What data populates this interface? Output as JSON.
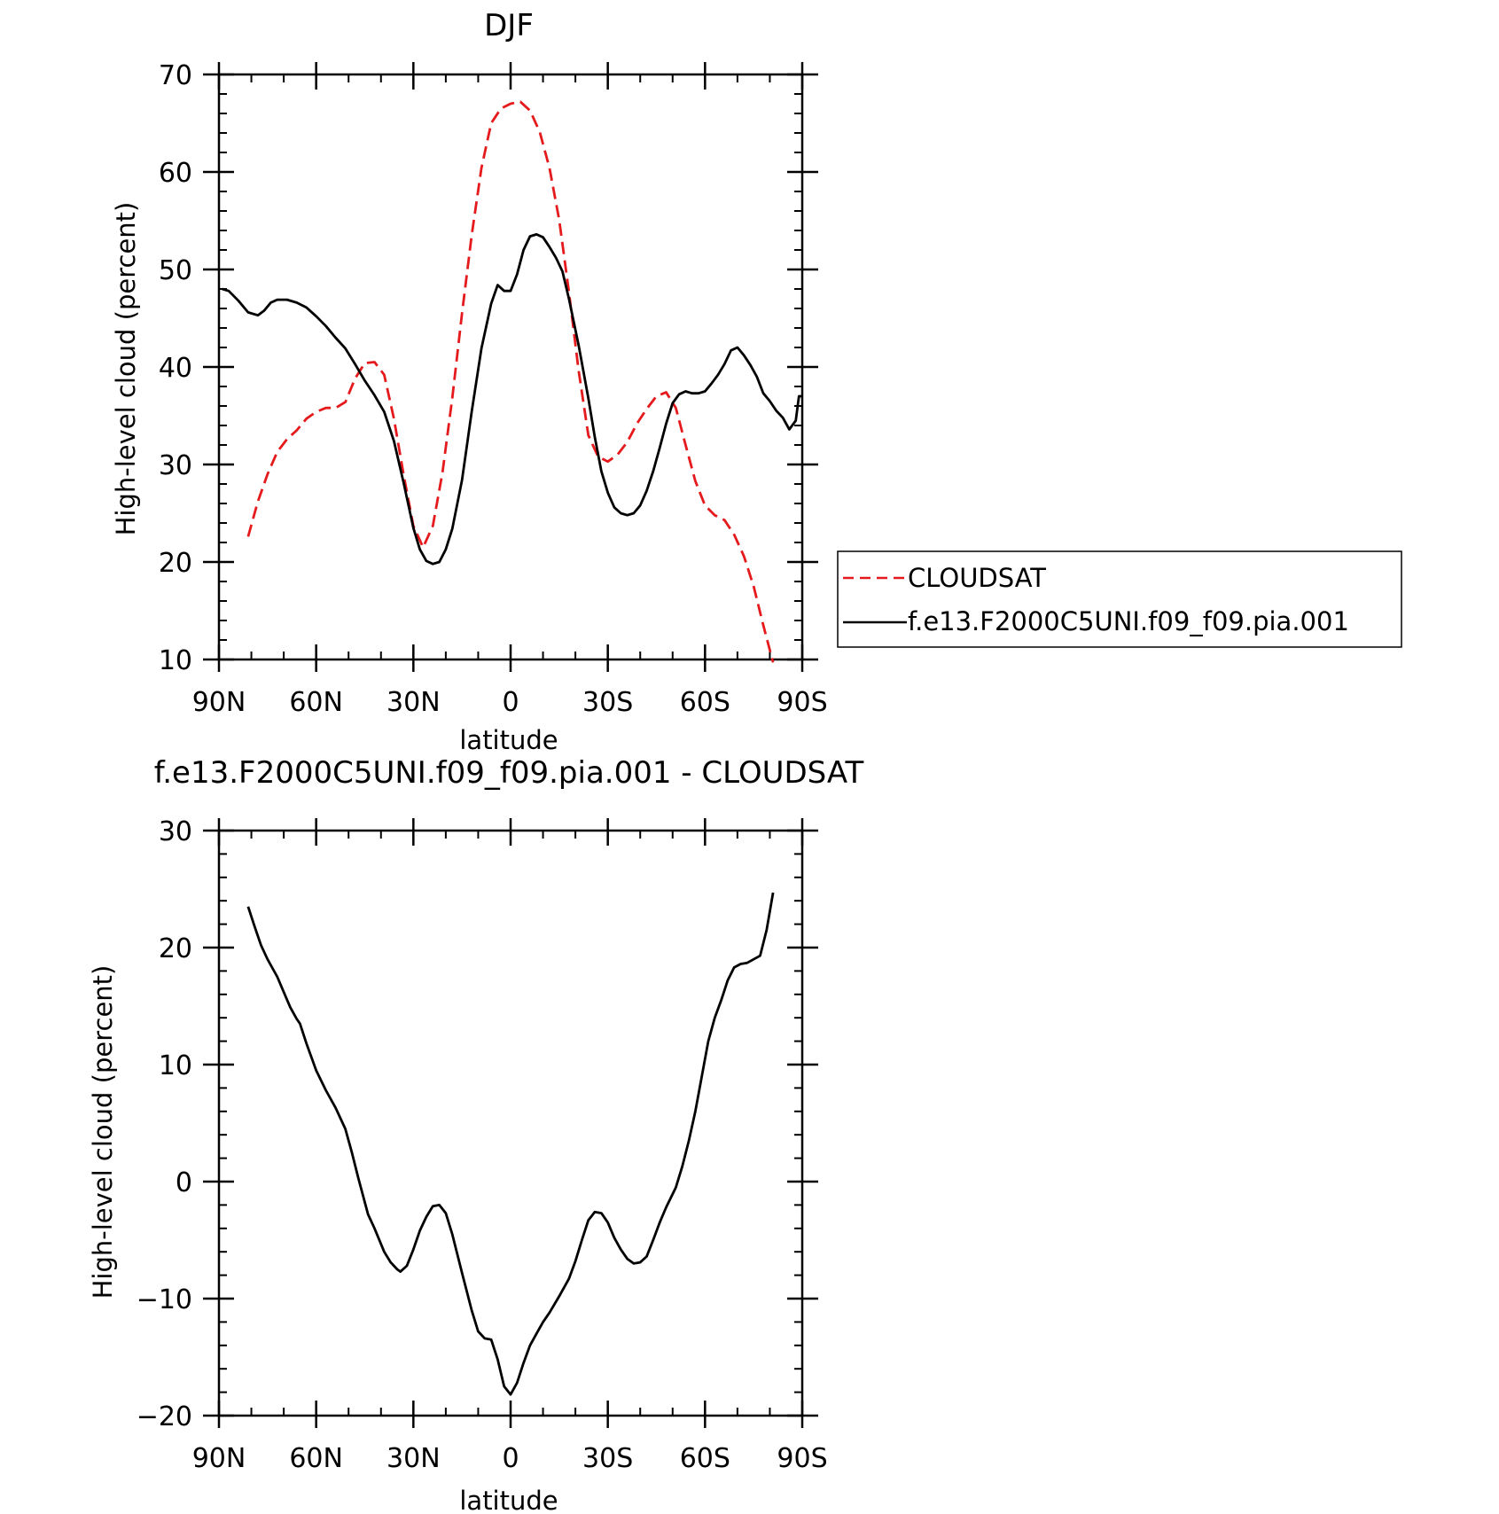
{
  "chart_data": [
    {
      "type": "line",
      "title": "DJF",
      "xlabel": "latitude",
      "ylabel": "High-level cloud (percent)",
      "xlim": [
        90,
        -90
      ],
      "ylim": [
        10,
        70
      ],
      "x_ticks": [
        {
          "value": 90,
          "label": "90N"
        },
        {
          "value": 60,
          "label": "60N"
        },
        {
          "value": 30,
          "label": "30N"
        },
        {
          "value": 0,
          "label": "0"
        },
        {
          "value": -30,
          "label": "30S"
        },
        {
          "value": -60,
          "label": "60S"
        },
        {
          "value": -90,
          "label": "90S"
        }
      ],
      "y_ticks": [
        10,
        20,
        30,
        40,
        50,
        60,
        70
      ],
      "legend": {
        "placement": "right"
      },
      "series": [
        {
          "name": "CLOUDSAT",
          "color": "#e41a1c",
          "dash": "dashed",
          "points": [
            [
              81,
              22.6
            ],
            [
              78,
              26.2
            ],
            [
              75,
              29.0
            ],
            [
              72,
              31.3
            ],
            [
              69,
              32.6
            ],
            [
              66,
              33.5
            ],
            [
              63,
              34.7
            ],
            [
              60,
              35.4
            ],
            [
              57,
              35.8
            ],
            [
              54,
              35.8
            ],
            [
              51,
              36.4
            ],
            [
              48,
              38.8
            ],
            [
              45,
              40.4
            ],
            [
              42,
              40.5
            ],
            [
              39,
              39.2
            ],
            [
              36,
              34.7
            ],
            [
              33,
              28.9
            ],
            [
              30,
              23.7
            ],
            [
              27,
              21.5
            ],
            [
              24,
              23.7
            ],
            [
              21,
              29.2
            ],
            [
              18,
              36.8
            ],
            [
              15,
              45.5
            ],
            [
              12,
              53.5
            ],
            [
              9,
              60.4
            ],
            [
              6,
              65.0
            ],
            [
              3,
              66.5
            ],
            [
              0,
              67.0
            ],
            [
              -3,
              67.2
            ],
            [
              -6,
              66.3
            ],
            [
              -9,
              64.1
            ],
            [
              -12,
              60.4
            ],
            [
              -15,
              55.1
            ],
            [
              -18,
              47.7
            ],
            [
              -21,
              39.6
            ],
            [
              -24,
              33.0
            ],
            [
              -27,
              30.8
            ],
            [
              -30,
              30.3
            ],
            [
              -33,
              31.0
            ],
            [
              -36,
              32.3
            ],
            [
              -39,
              34.2
            ],
            [
              -42,
              35.7
            ],
            [
              -45,
              37.0
            ],
            [
              -48,
              37.4
            ],
            [
              -51,
              35.8
            ],
            [
              -54,
              32.0
            ],
            [
              -57,
              28.3
            ],
            [
              -60,
              25.8
            ],
            [
              -63,
              24.8
            ],
            [
              -66,
              24.3
            ],
            [
              -69,
              22.8
            ],
            [
              -72,
              20.6
            ],
            [
              -75,
              17.5
            ],
            [
              -78,
              13.5
            ],
            [
              -81,
              9.7
            ]
          ]
        },
        {
          "name": "f.e13.F2000C5UNI.f09_f09.pia.001",
          "color": "#000000",
          "dash": "solid",
          "points": [
            [
              89,
              48.0
            ],
            [
              87,
              47.8
            ],
            [
              84,
              46.8
            ],
            [
              81,
              45.6
            ],
            [
              78,
              45.3
            ],
            [
              76,
              45.8
            ],
            [
              74,
              46.6
            ],
            [
              72,
              46.9
            ],
            [
              69,
              46.9
            ],
            [
              66,
              46.6
            ],
            [
              63,
              46.1
            ],
            [
              60,
              45.2
            ],
            [
              57,
              44.2
            ],
            [
              54,
              43.0
            ],
            [
              51,
              41.9
            ],
            [
              48,
              40.3
            ],
            [
              45,
              38.6
            ],
            [
              42,
              37.1
            ],
            [
              39,
              35.4
            ],
            [
              36,
              32.4
            ],
            [
              33,
              28.1
            ],
            [
              30,
              23.5
            ],
            [
              28,
              21.3
            ],
            [
              26,
              20.1
            ],
            [
              24,
              19.8
            ],
            [
              22,
              20.0
            ],
            [
              20,
              21.3
            ],
            [
              18,
              23.4
            ],
            [
              15,
              28.4
            ],
            [
              12,
              35.4
            ],
            [
              9,
              41.9
            ],
            [
              6,
              46.5
            ],
            [
              4,
              48.4
            ],
            [
              2,
              47.8
            ],
            [
              0,
              47.8
            ],
            [
              -2,
              49.5
            ],
            [
              -4,
              52.0
            ],
            [
              -6,
              53.4
            ],
            [
              -8,
              53.6
            ],
            [
              -10,
              53.3
            ],
            [
              -12,
              52.3
            ],
            [
              -14,
              51.2
            ],
            [
              -16,
              49.8
            ],
            [
              -18,
              47.0
            ],
            [
              -21,
              42.2
            ],
            [
              -24,
              36.8
            ],
            [
              -26,
              32.8
            ],
            [
              -28,
              29.3
            ],
            [
              -30,
              27.1
            ],
            [
              -32,
              25.6
            ],
            [
              -34,
              25.0
            ],
            [
              -36,
              24.8
            ],
            [
              -38,
              25.0
            ],
            [
              -40,
              25.8
            ],
            [
              -42,
              27.3
            ],
            [
              -44,
              29.3
            ],
            [
              -46,
              31.7
            ],
            [
              -48,
              34.2
            ],
            [
              -50,
              36.3
            ],
            [
              -52,
              37.2
            ],
            [
              -54,
              37.5
            ],
            [
              -56,
              37.3
            ],
            [
              -58,
              37.3
            ],
            [
              -60,
              37.5
            ],
            [
              -62,
              38.3
            ],
            [
              -64,
              39.2
            ],
            [
              -66,
              40.3
            ],
            [
              -68,
              41.7
            ],
            [
              -70,
              42.0
            ],
            [
              -72,
              41.2
            ],
            [
              -74,
              40.2
            ],
            [
              -76,
              39.0
            ],
            [
              -78,
              37.3
            ],
            [
              -80,
              36.5
            ],
            [
              -82,
              35.5
            ],
            [
              -84,
              34.8
            ],
            [
              -86,
              33.6
            ],
            [
              -88,
              34.5
            ],
            [
              -89,
              37.0
            ],
            [
              -90,
              37.0
            ]
          ]
        }
      ]
    },
    {
      "type": "line",
      "title": "f.e13.F2000C5UNI.f09_f09.pia.001 - CLOUDSAT",
      "xlabel": "latitude",
      "ylabel": "High-level cloud (percent)",
      "xlim": [
        90,
        -90
      ],
      "ylim": [
        -20,
        30
      ],
      "x_ticks": [
        {
          "value": 90,
          "label": "90N"
        },
        {
          "value": 60,
          "label": "60N"
        },
        {
          "value": 30,
          "label": "30N"
        },
        {
          "value": 0,
          "label": "0"
        },
        {
          "value": -30,
          "label": "30S"
        },
        {
          "value": -60,
          "label": "60S"
        },
        {
          "value": -90,
          "label": "90S"
        }
      ],
      "y_ticks": [
        -20,
        -10,
        0,
        10,
        20,
        30
      ],
      "series": [
        {
          "color": "#000000",
          "dash": "solid",
          "points": [
            [
              81,
              23.5
            ],
            [
              79,
              21.8
            ],
            [
              77,
              20.2
            ],
            [
              75,
              19.0
            ],
            [
              72,
              17.5
            ],
            [
              70,
              16.2
            ],
            [
              68,
              14.9
            ],
            [
              66,
              13.9
            ],
            [
              65,
              13.5
            ],
            [
              63,
              11.8
            ],
            [
              60,
              9.5
            ],
            [
              57,
              7.8
            ],
            [
              54,
              6.3
            ],
            [
              51,
              4.5
            ],
            [
              49,
              2.5
            ],
            [
              47,
              0.3
            ],
            [
              44,
              -2.8
            ],
            [
              42,
              -4.0
            ],
            [
              39,
              -6.0
            ],
            [
              37,
              -6.9
            ],
            [
              35,
              -7.5
            ],
            [
              34,
              -7.7
            ],
            [
              32,
              -7.2
            ],
            [
              30,
              -5.8
            ],
            [
              28,
              -4.2
            ],
            [
              26,
              -3.0
            ],
            [
              24,
              -2.1
            ],
            [
              22,
              -2.0
            ],
            [
              20,
              -2.7
            ],
            [
              18,
              -4.5
            ],
            [
              15,
              -7.8
            ],
            [
              12,
              -11.0
            ],
            [
              10,
              -12.8
            ],
            [
              8,
              -13.4
            ],
            [
              6,
              -13.5
            ],
            [
              4,
              -15.2
            ],
            [
              2,
              -17.5
            ],
            [
              0,
              -18.2
            ],
            [
              -2,
              -17.2
            ],
            [
              -4,
              -15.5
            ],
            [
              -6,
              -14.0
            ],
            [
              -8,
              -13.0
            ],
            [
              -10,
              -12.0
            ],
            [
              -12,
              -11.2
            ],
            [
              -15,
              -9.8
            ],
            [
              -18,
              -8.3
            ],
            [
              -20,
              -6.8
            ],
            [
              -22,
              -5.0
            ],
            [
              -24,
              -3.3
            ],
            [
              -26,
              -2.6
            ],
            [
              -28,
              -2.7
            ],
            [
              -30,
              -3.5
            ],
            [
              -32,
              -4.8
            ],
            [
              -34,
              -5.8
            ],
            [
              -36,
              -6.6
            ],
            [
              -38,
              -7.0
            ],
            [
              -40,
              -6.9
            ],
            [
              -42,
              -6.4
            ],
            [
              -44,
              -5.0
            ],
            [
              -46,
              -3.5
            ],
            [
              -48,
              -2.2
            ],
            [
              -51,
              -0.5
            ],
            [
              -53,
              1.3
            ],
            [
              -55,
              3.5
            ],
            [
              -57,
              6.0
            ],
            [
              -59,
              9.0
            ],
            [
              -61,
              12.0
            ],
            [
              -63,
              14.0
            ],
            [
              -65,
              15.5
            ],
            [
              -67,
              17.2
            ],
            [
              -69,
              18.3
            ],
            [
              -71,
              18.6
            ],
            [
              -73,
              18.7
            ],
            [
              -75,
              19.0
            ],
            [
              -77,
              19.3
            ],
            [
              -79,
              21.5
            ],
            [
              -81,
              24.7
            ]
          ]
        }
      ]
    }
  ]
}
